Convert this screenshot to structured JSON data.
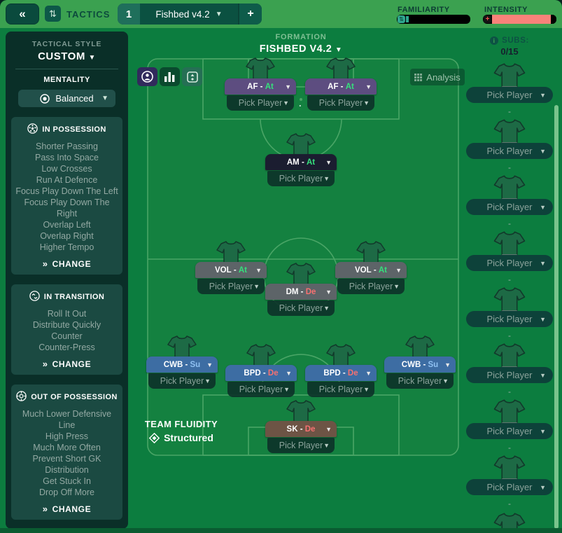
{
  "topbar": {
    "back_label": "«",
    "tactics_label": "TACTICS",
    "tab_number": "1",
    "tab_title": "Fishbed v4.2",
    "add_label": "+",
    "familiarity_label": "FAMILIARITY",
    "intensity_label": "INTENSITY",
    "intensity_plus": "+"
  },
  "sidebar": {
    "tactical_style_label": "TACTICAL STYLE",
    "tactical_style_value": "CUSTOM",
    "mentality_label": "MENTALITY",
    "mentality_value": "Balanced",
    "sections": [
      {
        "icon": "ball-icon",
        "title": "IN POSSESSION",
        "items": [
          "Shorter Passing",
          "Pass Into Space",
          "Low Crosses",
          "Run At Defence",
          "Focus Play Down The Left",
          "Focus Play Down The Right",
          "Overlap Left",
          "Overlap Right",
          "Higher Tempo"
        ],
        "change_label": "CHANGE"
      },
      {
        "icon": "transition-icon",
        "title": "IN TRANSITION",
        "items": [
          "Roll It Out",
          "Distribute Quickly",
          "Counter",
          "Counter-Press"
        ],
        "change_label": "CHANGE"
      },
      {
        "icon": "out-possession-icon",
        "title": "OUT OF POSSESSION",
        "items": [
          "Much Lower Defensive Line",
          "High Press",
          "Much More Often",
          "Prevent Short GK Distribution",
          "Get Stuck In",
          "Drop Off More"
        ],
        "change_label": "CHANGE"
      }
    ]
  },
  "formation": {
    "label": "FORMATION",
    "name": "FISHBED V4.2"
  },
  "pitch": {
    "analysis_label": "Analysis",
    "pair_separator": ".",
    "pick_player_label": "Pick Player",
    "positions": [
      {
        "slot": "af-left",
        "role": "AF",
        "duty": "At",
        "pill_color": "#5d4d80",
        "duty_color": "#35e07c",
        "player": "Pick Player"
      },
      {
        "slot": "af-right",
        "role": "AF",
        "duty": "At",
        "pill_color": "#5d4d80",
        "duty_color": "#35e07c",
        "player": "Pick Player"
      },
      {
        "slot": "am",
        "role": "AM",
        "duty": "At",
        "pill_color": "#1b1d30",
        "duty_color": "#35e07c",
        "player": "Pick Player"
      },
      {
        "slot": "vol-left",
        "role": "VOL",
        "duty": "At",
        "pill_color": "#5d6468",
        "duty_color": "#35e07c",
        "player": "Pick Player"
      },
      {
        "slot": "vol-right",
        "role": "VOL",
        "duty": "At",
        "pill_color": "#5d6468",
        "duty_color": "#35e07c",
        "player": "Pick Player"
      },
      {
        "slot": "dm",
        "role": "DM",
        "duty": "De",
        "pill_color": "#5d6468",
        "duty_color": "#f87171",
        "player": "Pick Player"
      },
      {
        "slot": "cwb-left",
        "role": "CWB",
        "duty": "Su",
        "pill_color": "#3d6da3",
        "duty_color": "#8fc1f2",
        "player": "Pick Player"
      },
      {
        "slot": "bpd-left",
        "role": "BPD",
        "duty": "De",
        "pill_color": "#3d6da3",
        "duty_color": "#f87171",
        "player": "Pick Player"
      },
      {
        "slot": "bpd-right",
        "role": "BPD",
        "duty": "De",
        "pill_color": "#3d6da3",
        "duty_color": "#f87171",
        "player": "Pick Player"
      },
      {
        "slot": "cwb-right",
        "role": "CWB",
        "duty": "Su",
        "pill_color": "#3d6da3",
        "duty_color": "#8fc1f2",
        "player": "Pick Player"
      },
      {
        "slot": "sk",
        "role": "SK",
        "duty": "De",
        "pill_color": "#6d5445",
        "duty_color": "#f87171",
        "player": "Pick Player"
      }
    ],
    "team_fluidity_label": "TEAM FLUIDITY",
    "team_fluidity_value": "Structured"
  },
  "subs": {
    "info_label": "SUBS:",
    "count": "0/15",
    "separator": "-",
    "slots": [
      "Pick Player",
      "Pick Player",
      "Pick Player",
      "Pick Player",
      "Pick Player",
      "Pick Player",
      "Pick Player",
      "Pick Player"
    ]
  }
}
